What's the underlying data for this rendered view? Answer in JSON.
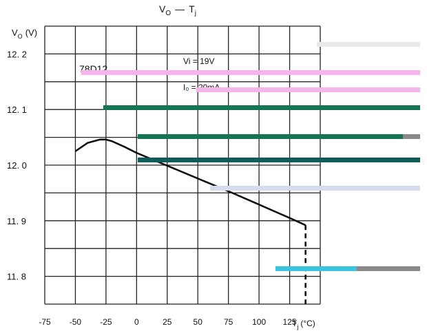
{
  "chart_data": {
    "type": "line",
    "title": "V₀ — Tj",
    "title_parts": {
      "v": "V",
      "v_sub": "O",
      "dash": "—",
      "t": "T",
      "t_sub": "j"
    },
    "ylabel": "V₀ (V)",
    "ylabel_parts": {
      "v": "V",
      "sub": "O",
      "unit": "(V)"
    },
    "xlabel": "Tj (°C)",
    "xlabel_parts": {
      "t": "T",
      "sub": "j",
      "unit": "(°C)"
    },
    "xlim": [
      -75,
      150
    ],
    "ylim": [
      11.75,
      12.25
    ],
    "x_ticks": [
      -75,
      -50,
      -25,
      0,
      25,
      50,
      75,
      100,
      125
    ],
    "x_tick_labels": [
      "-75",
      "-50",
      "-25",
      "0",
      "25",
      "50",
      "75",
      "100",
      "125"
    ],
    "y_ticks": [
      11.8,
      11.9,
      12.0,
      12.1,
      12.2
    ],
    "y_tick_labels": [
      "11. 8",
      "11. 9",
      "12. 0",
      "12. 1",
      "12. 2"
    ],
    "grid": true,
    "annotations": {
      "part": "78D12",
      "vi": "Vi = 19V",
      "io": "I₀ = 20mA"
    },
    "series": [
      {
        "x": [
          -50,
          -40,
          -30,
          -25,
          -20,
          -10,
          0,
          25,
          50,
          75,
          100,
          125,
          138
        ],
        "y": [
          12.025,
          12.04,
          12.046,
          12.046,
          12.043,
          12.033,
          12.022,
          11.999,
          11.976,
          11.953,
          11.929,
          11.905,
          11.892
        ]
      }
    ],
    "dashed_marker": {
      "x": 138,
      "y_from": 11.892,
      "y_to": 11.75
    }
  },
  "colors": {
    "line": "#111111",
    "pink": "#f7b3ec",
    "dark_green": "#137552",
    "teal": "#0f5d5a",
    "light_gray": "#e9e9e9",
    "mid_gray": "#8a8a8a",
    "cyan": "#3cc3e0",
    "lavender": "#d8daf0"
  }
}
